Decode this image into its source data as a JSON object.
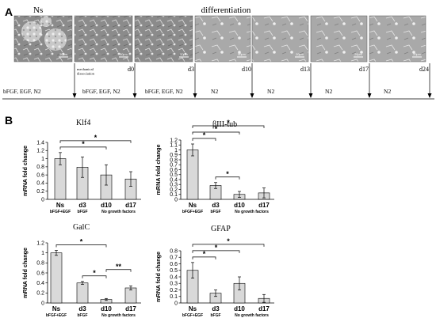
{
  "panel_a": {
    "letter": "A",
    "ns_label": "Ns",
    "diff_label": "differentiation",
    "mech_label_1": "mechanical",
    "mech_label_2": "dissociation",
    "scale_labels": [
      "50µm",
      "50µm",
      "50µm",
      "50µm",
      "20µm",
      "20µm",
      "20µm"
    ],
    "day_labels": [
      "d0",
      "d3",
      "d10",
      "d13",
      "d17",
      "d24"
    ],
    "media": [
      "bFGF, EGF, N2",
      "bFGF, EGF, N2",
      "bFGF, EGF, N2",
      "N2",
      "N2",
      "N2",
      "N2"
    ]
  },
  "panel_b": {
    "letter": "B"
  },
  "chart_data": [
    {
      "type": "bar",
      "title": "Klf4",
      "ylabel": "mRNA fold change",
      "categories": [
        "Ns",
        "d3",
        "d10",
        "d17"
      ],
      "values": [
        1.0,
        0.79,
        0.6,
        0.5
      ],
      "errors": [
        0.15,
        0.25,
        0.25,
        0.18
      ],
      "ylim": [
        0,
        1.4
      ],
      "yticks": [
        "0",
        "0.2",
        "0.4",
        "0.6",
        "0.8",
        "1",
        "1.2",
        "1.4"
      ],
      "sublabels": [
        "bFGF+EGF",
        "bFGF",
        "No growth factors"
      ],
      "significance": [
        {
          "from": "Ns",
          "to": "d10",
          "label": "*"
        },
        {
          "from": "Ns",
          "to": "d17",
          "label": "*"
        }
      ]
    },
    {
      "type": "bar",
      "title": "βIII-tub",
      "ylabel": "mRNA fold change",
      "categories": [
        "Ns",
        "d3",
        "d10",
        "d17"
      ],
      "values": [
        1.0,
        0.28,
        0.1,
        0.13
      ],
      "errors": [
        0.12,
        0.06,
        0.06,
        0.1
      ],
      "ylim": [
        0,
        1.2
      ],
      "yticks": [
        "0",
        "0.1",
        "0.2",
        "0.3",
        "0.4",
        "0.5",
        "0.6",
        "0.7",
        "0.8",
        "0.9",
        "1",
        "1.1",
        "1.2"
      ],
      "sublabels": [
        "bFGF+EGF",
        "bFGF",
        "No growth factors"
      ],
      "significance": [
        {
          "from": "Ns",
          "to": "d3",
          "label": "*"
        },
        {
          "from": "Ns",
          "to": "d10",
          "label": "*"
        },
        {
          "from": "Ns",
          "to": "d17",
          "label": "*"
        },
        {
          "from": "d3",
          "to": "d10",
          "label": "*"
        }
      ]
    },
    {
      "type": "bar",
      "title": "GalC",
      "ylabel": "mRNA fold change",
      "categories": [
        "Ns",
        "d3",
        "d10",
        "d17"
      ],
      "values": [
        1.0,
        0.4,
        0.07,
        0.3
      ],
      "errors": [
        0.05,
        0.03,
        0.02,
        0.04
      ],
      "ylim": [
        0,
        1.2
      ],
      "yticks": [
        "0",
        "0.2",
        "0.4",
        "0.6",
        "0.8",
        "1",
        "1.2"
      ],
      "sublabels": [
        "bFGF+EGF",
        "bFGF",
        "No growth factors"
      ],
      "significance": [
        {
          "from": "Ns",
          "to": "d10",
          "label": "*"
        },
        {
          "from": "d3",
          "to": "d10",
          "label": "*"
        },
        {
          "from": "d10",
          "to": "d17",
          "label": "**"
        }
      ]
    },
    {
      "type": "bar",
      "title": "GFAP",
      "ylabel": "mRNA fold change",
      "categories": [
        "Ns",
        "d3",
        "d10",
        "d17"
      ],
      "values": [
        0.5,
        0.15,
        0.3,
        0.07
      ],
      "errors": [
        0.12,
        0.05,
        0.1,
        0.06
      ],
      "ylim": [
        0,
        0.8
      ],
      "yticks": [
        "0",
        "0.1",
        "0.2",
        "0.3",
        "0.4",
        "0.5",
        "0.6",
        "0.7",
        "0.8"
      ],
      "sublabels": [
        "bFGF+EGF",
        "bFGF",
        "No growth factors"
      ],
      "significance": [
        {
          "from": "Ns",
          "to": "d3",
          "label": "*"
        },
        {
          "from": "Ns",
          "to": "d10",
          "label": "*"
        },
        {
          "from": "Ns",
          "to": "d17",
          "label": "*"
        }
      ]
    }
  ]
}
